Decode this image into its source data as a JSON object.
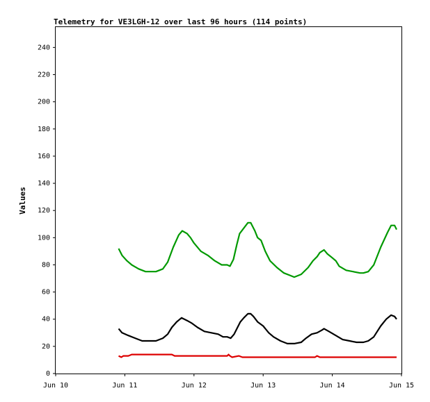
{
  "chart_data": {
    "type": "line",
    "title": "Telemetry for VE3LGH-12 over last 96 hours (114 points)",
    "xlabel": "",
    "ylabel": "Values",
    "xlim": [
      "Jun 10",
      "Jun 15"
    ],
    "ylim": [
      0,
      255
    ],
    "x_ticks": [
      "Jun 10",
      "Jun 11",
      "Jun 12",
      "Jun 13",
      "Jun 14",
      "Jun 15"
    ],
    "y_ticks": [
      0,
      20,
      40,
      60,
      80,
      100,
      120,
      140,
      160,
      180,
      200,
      220,
      240
    ],
    "grid": false,
    "legend": "none",
    "series": [
      {
        "color": "#009900",
        "points": [
          [
            0.91,
            92
          ],
          [
            0.96,
            87
          ],
          [
            1.03,
            83
          ],
          [
            1.1,
            80
          ],
          [
            1.2,
            77
          ],
          [
            1.3,
            75
          ],
          [
            1.45,
            75
          ],
          [
            1.55,
            77
          ],
          [
            1.62,
            82
          ],
          [
            1.7,
            93
          ],
          [
            1.78,
            102
          ],
          [
            1.83,
            105
          ],
          [
            1.9,
            103
          ],
          [
            1.95,
            100
          ],
          [
            2.0,
            96
          ],
          [
            2.1,
            90
          ],
          [
            2.2,
            87
          ],
          [
            2.3,
            83
          ],
          [
            2.4,
            80
          ],
          [
            2.48,
            80
          ],
          [
            2.52,
            79
          ],
          [
            2.57,
            84
          ],
          [
            2.62,
            95
          ],
          [
            2.66,
            103
          ],
          [
            2.72,
            107
          ],
          [
            2.78,
            111
          ],
          [
            2.82,
            111
          ],
          [
            2.88,
            105
          ],
          [
            2.92,
            100
          ],
          [
            2.97,
            98
          ],
          [
            3.03,
            90
          ],
          [
            3.1,
            83
          ],
          [
            3.2,
            78
          ],
          [
            3.3,
            74
          ],
          [
            3.4,
            72
          ],
          [
            3.45,
            71
          ],
          [
            3.55,
            73
          ],
          [
            3.65,
            78
          ],
          [
            3.72,
            83
          ],
          [
            3.78,
            86
          ],
          [
            3.82,
            89
          ],
          [
            3.88,
            91
          ],
          [
            3.93,
            88
          ],
          [
            3.98,
            86
          ],
          [
            4.05,
            83
          ],
          [
            4.1,
            79
          ],
          [
            4.2,
            76
          ],
          [
            4.3,
            75
          ],
          [
            4.4,
            74
          ],
          [
            4.45,
            74
          ],
          [
            4.52,
            75
          ],
          [
            4.6,
            80
          ],
          [
            4.7,
            93
          ],
          [
            4.8,
            104
          ],
          [
            4.85,
            109
          ],
          [
            4.9,
            109
          ],
          [
            4.93,
            106
          ]
        ]
      },
      {
        "color": "#000000",
        "points": [
          [
            0.91,
            33
          ],
          [
            0.96,
            30
          ],
          [
            1.05,
            28
          ],
          [
            1.15,
            26
          ],
          [
            1.25,
            24
          ],
          [
            1.35,
            24
          ],
          [
            1.45,
            24
          ],
          [
            1.55,
            26
          ],
          [
            1.62,
            29
          ],
          [
            1.68,
            34
          ],
          [
            1.75,
            38
          ],
          [
            1.82,
            41
          ],
          [
            1.9,
            39
          ],
          [
            1.97,
            37
          ],
          [
            2.05,
            34
          ],
          [
            2.15,
            31
          ],
          [
            2.25,
            30
          ],
          [
            2.35,
            29
          ],
          [
            2.42,
            27
          ],
          [
            2.48,
            27
          ],
          [
            2.53,
            26
          ],
          [
            2.58,
            29
          ],
          [
            2.63,
            34
          ],
          [
            2.67,
            38
          ],
          [
            2.72,
            41
          ],
          [
            2.78,
            44
          ],
          [
            2.82,
            44
          ],
          [
            2.86,
            42
          ],
          [
            2.92,
            38
          ],
          [
            3.0,
            35
          ],
          [
            3.08,
            30
          ],
          [
            3.15,
            27
          ],
          [
            3.25,
            24
          ],
          [
            3.35,
            22
          ],
          [
            3.45,
            22
          ],
          [
            3.55,
            23
          ],
          [
            3.62,
            26
          ],
          [
            3.7,
            29
          ],
          [
            3.78,
            30
          ],
          [
            3.85,
            32
          ],
          [
            3.88,
            33
          ],
          [
            3.95,
            31
          ],
          [
            4.05,
            28
          ],
          [
            4.15,
            25
          ],
          [
            4.25,
            24
          ],
          [
            4.35,
            23
          ],
          [
            4.45,
            23
          ],
          [
            4.52,
            24
          ],
          [
            4.6,
            27
          ],
          [
            4.65,
            31
          ],
          [
            4.7,
            35
          ],
          [
            4.78,
            40
          ],
          [
            4.85,
            43
          ],
          [
            4.9,
            42
          ],
          [
            4.93,
            40
          ]
        ]
      },
      {
        "color": "#dd0000",
        "points": [
          [
            0.91,
            13
          ],
          [
            0.95,
            12
          ],
          [
            0.98,
            13
          ],
          [
            1.05,
            13
          ],
          [
            1.1,
            14
          ],
          [
            1.3,
            14
          ],
          [
            1.5,
            14
          ],
          [
            1.68,
            14
          ],
          [
            1.72,
            13
          ],
          [
            2.0,
            13
          ],
          [
            2.3,
            13
          ],
          [
            2.48,
            13
          ],
          [
            2.5,
            14
          ],
          [
            2.52,
            13
          ],
          [
            2.55,
            12
          ],
          [
            2.65,
            13
          ],
          [
            2.7,
            12
          ],
          [
            3.0,
            12
          ],
          [
            3.5,
            12
          ],
          [
            3.75,
            12
          ],
          [
            3.78,
            13
          ],
          [
            3.82,
            12
          ],
          [
            4.0,
            12
          ],
          [
            4.5,
            12
          ],
          [
            4.93,
            12
          ]
        ]
      }
    ]
  }
}
